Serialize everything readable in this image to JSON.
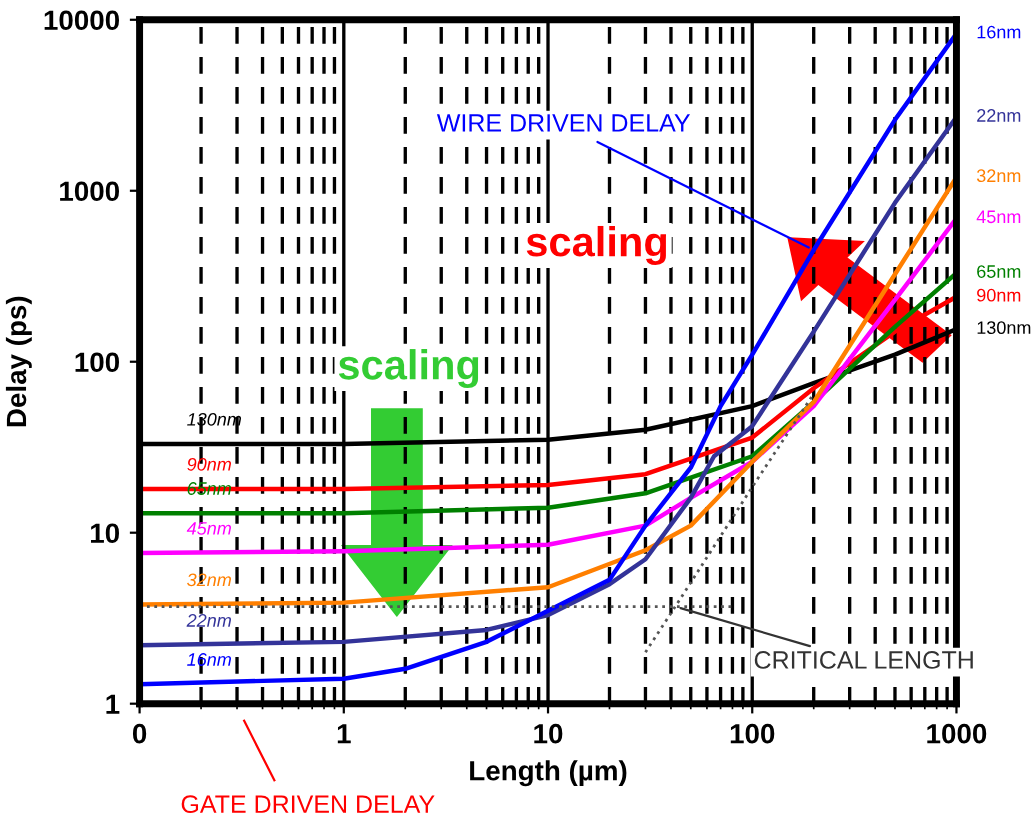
{
  "chart_data": {
    "type": "line",
    "xlabel": "Length (µm)",
    "ylabel": "Delay (ps)",
    "log": "xy",
    "xlim": [
      0.1,
      1000
    ],
    "ylim": [
      1,
      10000
    ],
    "xticks": [
      {
        "value": 0.1,
        "label": "0"
      },
      1,
      10,
      100,
      1000
    ],
    "yticks": [
      1,
      10,
      100,
      1000,
      10000
    ],
    "grid": "x",
    "legend": false,
    "line_style": "solid",
    "marker": "none",
    "series": [
      {
        "name": "130nm",
        "color": "#000000",
        "x": [
          0.1,
          1,
          10,
          30,
          100,
          200,
          500,
          1000
        ],
        "values": [
          33,
          33,
          35,
          40,
          55,
          75,
          110,
          155
        ]
      },
      {
        "name": "90nm",
        "color": "#ff0000",
        "x": [
          0.1,
          1,
          10,
          30,
          100,
          200,
          500,
          1000
        ],
        "values": [
          18,
          18,
          19,
          22,
          36,
          70,
          150,
          240
        ]
      },
      {
        "name": "65nm",
        "color": "#008000",
        "x": [
          0.1,
          1,
          10,
          30,
          100,
          200,
          500,
          1000
        ],
        "values": [
          13,
          13,
          14,
          17,
          28,
          58,
          160,
          330
        ]
      },
      {
        "name": "45nm",
        "color": "#ff00ff",
        "x": [
          0.1,
          1,
          10,
          30,
          50,
          100,
          200,
          500,
          1000
        ],
        "values": [
          7.6,
          7.8,
          8.5,
          11,
          16,
          26,
          55,
          230,
          690
        ]
      },
      {
        "name": "32nm",
        "color": "#ff7f00",
        "x": [
          0.1,
          1,
          10,
          30,
          50,
          100,
          200,
          500,
          1000
        ],
        "values": [
          3.8,
          3.9,
          4.8,
          7.9,
          11,
          26,
          58,
          325,
          1200
        ]
      },
      {
        "name": "22nm",
        "color": "#333399",
        "x": [
          0.1,
          1,
          5,
          10,
          20,
          30,
          50,
          65,
          100,
          200,
          500,
          1000
        ],
        "values": [
          2.2,
          2.3,
          2.7,
          3.3,
          5,
          7,
          16,
          28,
          42,
          150,
          850,
          2700
        ]
      },
      {
        "name": "16nm",
        "color": "#0000ff",
        "x": [
          0.1,
          1,
          2,
          5,
          10,
          20,
          30,
          50,
          70,
          100,
          200,
          500,
          1000
        ],
        "values": [
          1.3,
          1.4,
          1.6,
          2.3,
          3.5,
          5.3,
          11,
          24,
          55,
          110,
          450,
          2600,
          8300
        ]
      },
      {
        "color": "#555555",
        "line_style": "dotted",
        "x": [
          0.1,
          80
        ],
        "values": [
          3.7,
          3.7
        ]
      },
      {
        "color": "#555555",
        "line_style": "dotted",
        "x": [
          30,
          42,
          100,
          200
        ],
        "values": [
          2,
          3.7,
          18.5,
          65
        ]
      }
    ],
    "annotations": [
      {
        "text": "WIRE DRIVEN DELAY",
        "x": 200,
        "y": 450
      },
      {
        "text": "CRITICAL LENGTH",
        "x": 42,
        "y": 3.7
      },
      "GATE DRIVEN DELAY",
      "scaling",
      "scaling"
    ]
  }
}
